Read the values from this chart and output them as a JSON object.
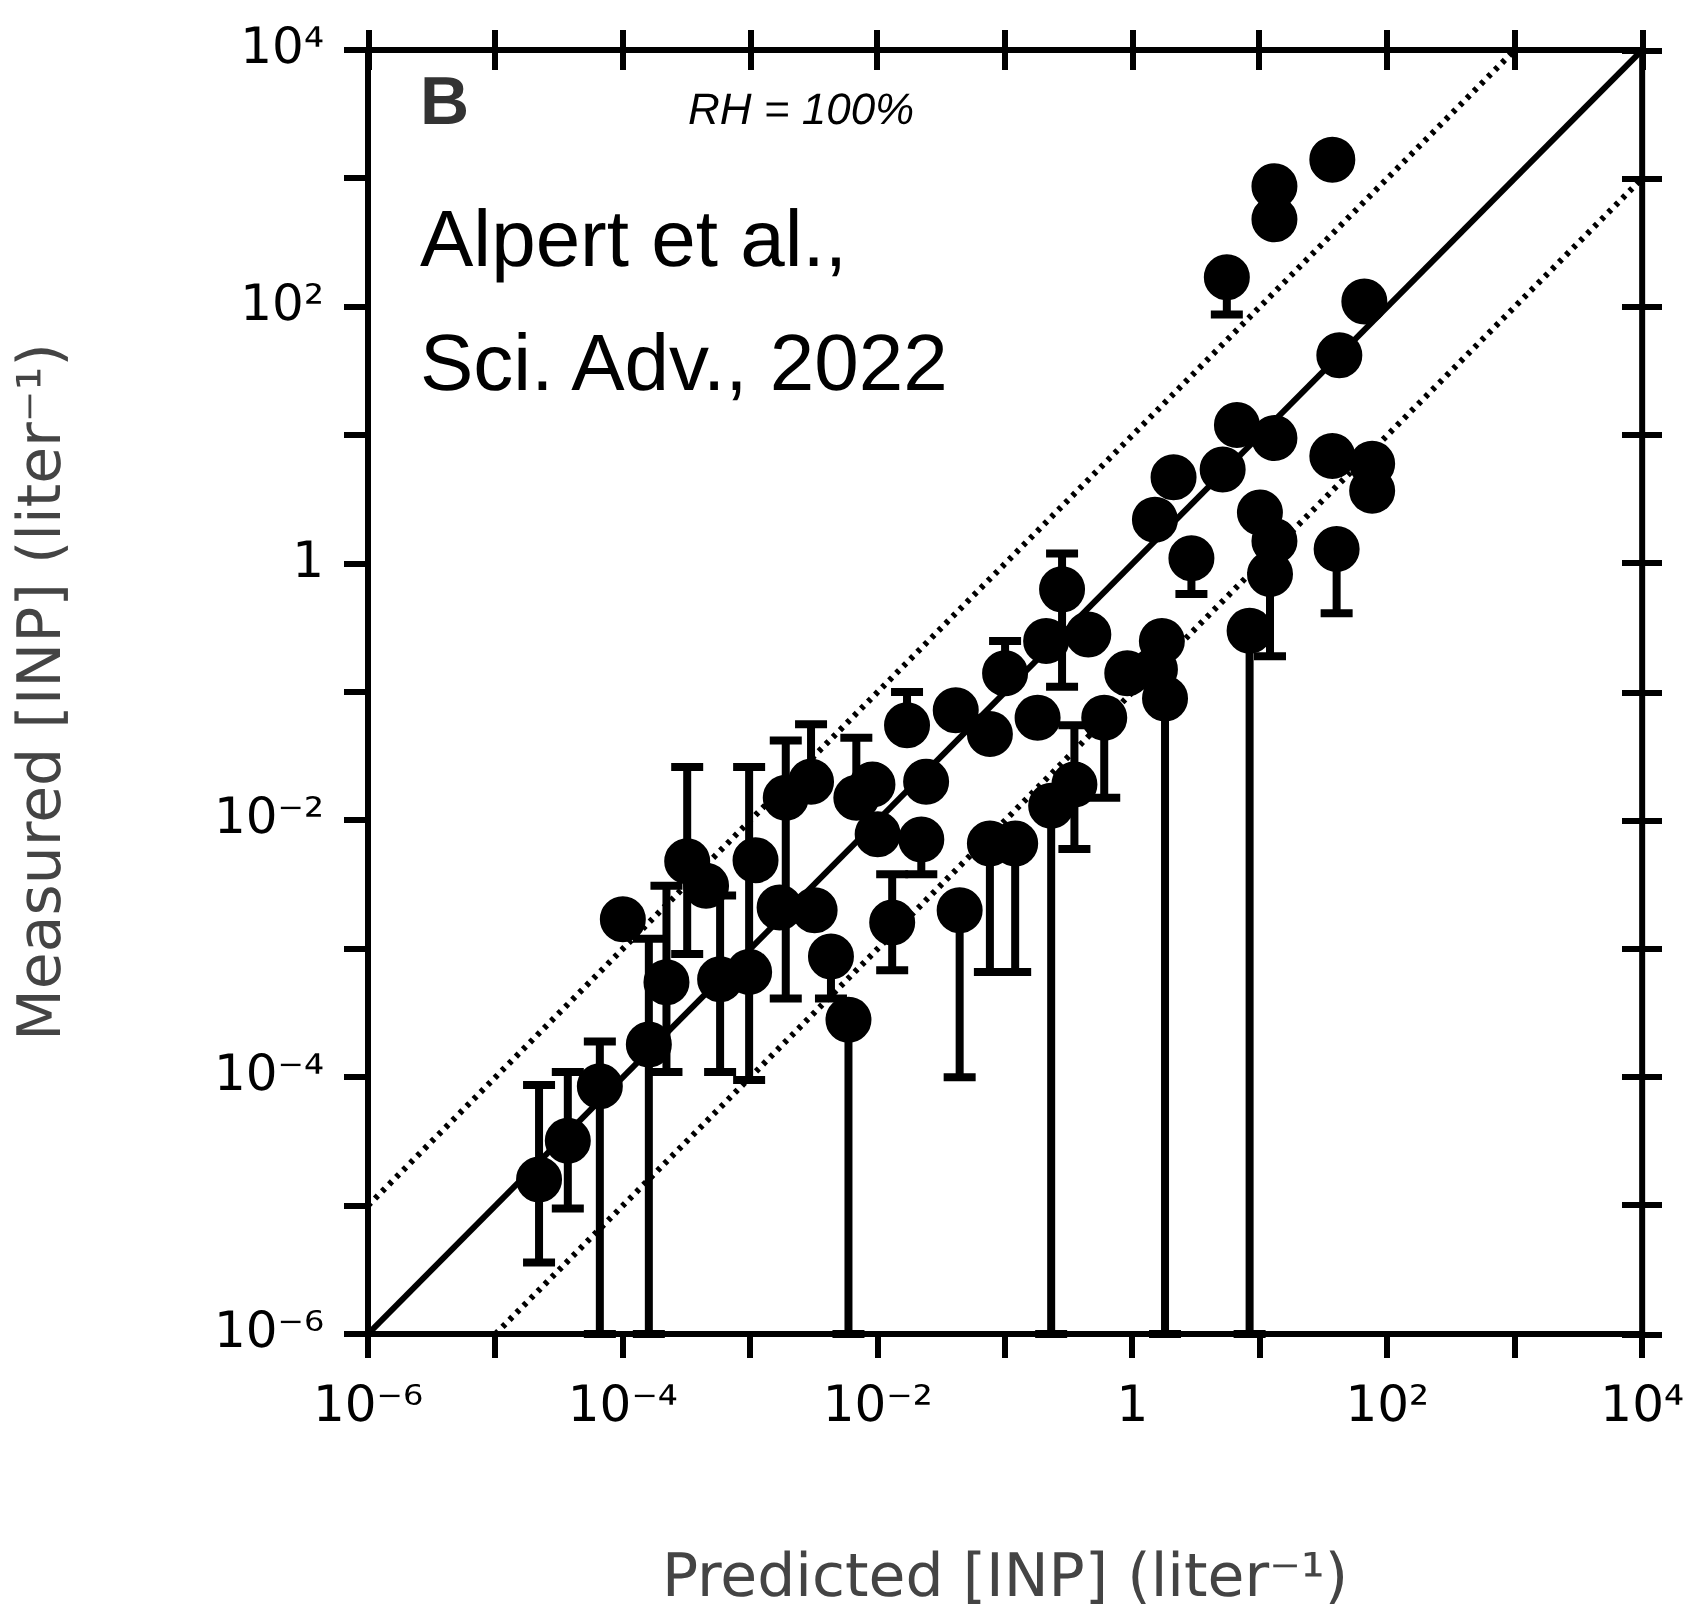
{
  "chart_data": {
    "type": "scatter",
    "xlabel": "Predicted [INP] (liter⁻¹)",
    "ylabel": "Measured [INP] (liter⁻¹)",
    "annotations": [
      "B",
      "RH = 100%",
      "Alpert et al.,",
      "Sci. Adv., 2022"
    ],
    "log": "xy",
    "grid": false,
    "legend": false,
    "marker": "circle",
    "xlim": [
      1e-06,
      10000
    ],
    "ylim": [
      1e-06,
      10000
    ],
    "xticks": [
      {
        "value": 1e-06,
        "label": "10⁻⁶"
      },
      {
        "value": 1e-05,
        "label": null
      },
      {
        "value": 0.0001,
        "label": "10⁻⁴"
      },
      {
        "value": 0.001,
        "label": null
      },
      {
        "value": 0.01,
        "label": "10⁻²"
      },
      {
        "value": 0.1,
        "label": null
      },
      1,
      {
        "value": 10,
        "label": null
      },
      {
        "value": 100,
        "label": "10²"
      },
      {
        "value": 1000,
        "label": null
      },
      {
        "value": 10000,
        "label": "10⁴"
      }
    ],
    "yticks": [
      {
        "value": 1e-06,
        "label": "10⁻⁶"
      },
      {
        "value": 1e-05,
        "label": null
      },
      {
        "value": 0.0001,
        "label": "10⁻⁴"
      },
      {
        "value": 0.001,
        "label": null
      },
      {
        "value": 0.01,
        "label": "10⁻²"
      },
      {
        "value": 0.1,
        "label": null
      },
      1,
      {
        "value": 10,
        "label": null
      },
      {
        "value": 100,
        "label": "10²"
      },
      {
        "value": 1000,
        "label": null
      },
      {
        "value": 10000,
        "label": "10⁴"
      }
    ],
    "series": [
      {
        "color": "#000000",
        "x": [
          2.2e-05,
          3.7e-05,
          6.6e-05,
          0.00016,
          0.0001,
          0.00022,
          0.00032,
          0.00045,
          0.00058,
          0.00098,
          0.0011,
          0.0017,
          0.0019,
          0.003,
          0.0032,
          0.0043,
          0.0059,
          0.0068,
          0.0091,
          0.013,
          0.01,
          0.017,
          0.024,
          0.022,
          0.044,
          0.041,
          0.076,
          0.076,
          0.12,
          0.18,
          0.23,
          0.35,
          0.6,
          1.8,
          1.5,
          37,
          13,
          13,
          5.5,
          66,
          42,
          6.6,
          13,
          5.1,
          2.1,
          1.5,
          2.9,
          10,
          37,
          76,
          76,
          40,
          13,
          8.3,
          12,
          0.28,
          0.45,
          1.7,
          0.21,
          0.1,
          0.91
        ],
        "values": [
          1.6e-05,
          3.2e-05,
          8.5e-05,
          0.00018,
          0.0017,
          0.00055,
          0.0048,
          0.0031,
          0.00058,
          0.00066,
          0.0049,
          0.0021,
          0.015,
          0.02,
          0.002,
          0.00087,
          0.00028,
          0.015,
          0.019,
          0.0016,
          0.0078,
          0.055,
          0.02,
          0.0071,
          0.002,
          0.072,
          0.047,
          0.0066,
          0.0066,
          0.063,
          0.013,
          0.019,
          0.063,
          0.089,
          0.15,
          1400,
          870,
          480,
          170,
          110,
          42,
          12,
          9.5,
          5.4,
          4.7,
          2.2,
          1.1,
          2.5,
          6.9,
          6.0,
          3.7,
          1.3,
          1.5,
          0.3,
          0.83,
          0.63,
          0.28,
          0.25,
          0.25,
          0.14,
          0.14
        ],
        "errors": [
          [
            3.6e-06,
            8.7e-05
          ],
          [
            9.5e-06,
            0.00011
          ],
          [
            1e-06,
            0.00019
          ],
          [
            1e-06,
            0.0012
          ],
          null,
          [
            0.00011,
            0.0031
          ],
          [
            0.00091,
            0.026
          ],
          null,
          [
            0.00011,
            0.0026
          ],
          [
            9.5e-05,
            0.026
          ],
          null,
          null,
          [
            0.00041,
            0.042
          ],
          [
            0.02,
            0.056
          ],
          null,
          [
            0.00041,
            0.00087
          ],
          [
            1e-06,
            0.00028
          ],
          [
            0.015,
            0.044
          ],
          null,
          [
            0.00068,
            0.0038
          ],
          null,
          [
            0.055,
            0.1
          ],
          null,
          [
            0.0038,
            0.0071
          ],
          [
            0.0001,
            0.002
          ],
          null,
          null,
          [
            0.00066,
            0.0066
          ],
          [
            0.00066,
            0.0066
          ],
          null,
          [
            1e-06,
            0.013
          ],
          [
            0.006,
            0.055
          ],
          [
            0.015,
            0.063
          ],
          [
            1e-06,
            0.089
          ],
          null,
          null,
          null,
          null,
          [
            87,
            170
          ],
          null,
          null,
          null,
          null,
          null,
          null,
          null,
          [
            0.58,
            1.1
          ],
          null,
          null,
          null,
          null,
          [
            0.41,
            1.3
          ],
          null,
          [
            1e-06,
            0.3
          ],
          [
            0.19,
            0.83
          ],
          [
            0.11,
            1.2
          ],
          null,
          null,
          null,
          [
            0.14,
            0.25
          ],
          null
        ]
      },
      {
        "type": "line",
        "color": "#000000",
        "line_style": "solid",
        "marker": "none",
        "x": [
          1e-06,
          10000
        ],
        "values": [
          1e-06,
          10000
        ]
      },
      {
        "type": "line",
        "color": "#000000",
        "line_style": "dotted",
        "marker": "none",
        "x": [
          1e-06,
          1000
        ],
        "values": [
          1e-05,
          10000
        ]
      },
      {
        "type": "line",
        "color": "#000000",
        "line_style": "dotted",
        "marker": "none",
        "x": [
          1e-05,
          10000
        ],
        "values": [
          1e-06,
          1000
        ]
      }
    ]
  }
}
